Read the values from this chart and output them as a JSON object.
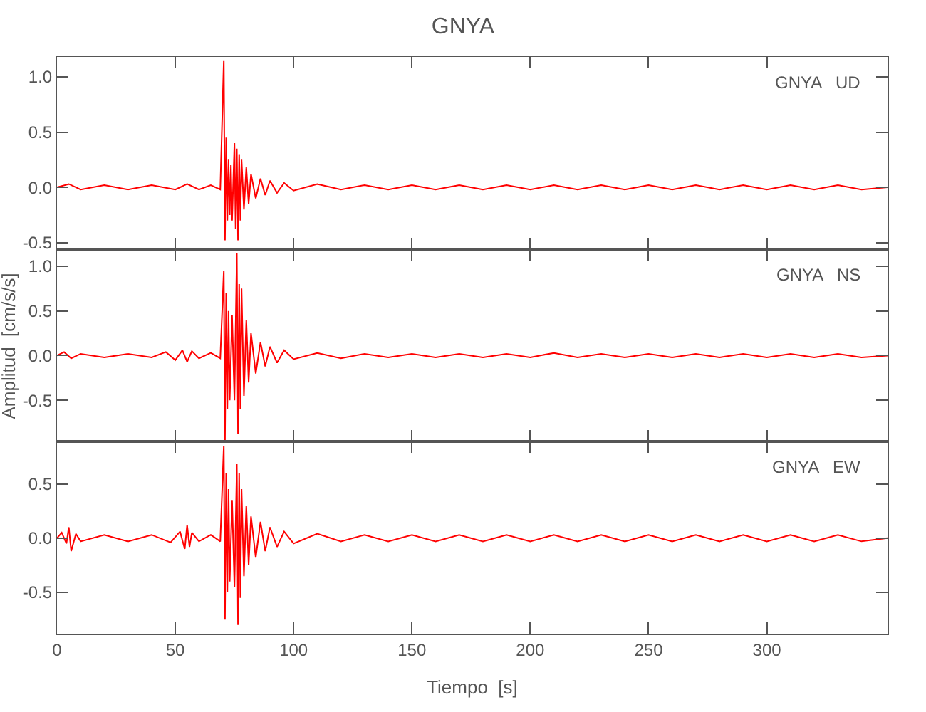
{
  "chart_data": [
    {
      "type": "line",
      "title": "GNYA",
      "annotations": [
        "GNYA   UD"
      ],
      "xlim": [
        0,
        351
      ],
      "xticks": [
        0,
        50,
        100,
        150,
        200,
        250,
        300
      ],
      "ylim": [
        -0.56,
        1.18
      ],
      "yticks": [
        {
          "value": -0.5,
          "label": "-0.5"
        },
        {
          "value": 0,
          "label": "0.0"
        },
        {
          "value": 0.5,
          "label": "0.5"
        },
        {
          "value": 1,
          "label": "1.0"
        }
      ],
      "tick_labels": "y",
      "series": [
        {
          "color": "#ff0000",
          "x": [
            0,
            5,
            10,
            20,
            30,
            40,
            50,
            55,
            60,
            65,
            69,
            70.5,
            71,
            71.5,
            72,
            72.5,
            73,
            73.5,
            74,
            75,
            75.5,
            76,
            76.5,
            77,
            77.5,
            78,
            79,
            80,
            81,
            82,
            84,
            86,
            88,
            90,
            93,
            96,
            100,
            110,
            120,
            130,
            140,
            150,
            160,
            170,
            180,
            190,
            200,
            210,
            220,
            230,
            240,
            250,
            260,
            270,
            280,
            290,
            300,
            310,
            320,
            330,
            340,
            351
          ],
          "values": [
            0,
            0.03,
            -0.02,
            0.02,
            -0.02,
            0.02,
            -0.02,
            0.03,
            -0.02,
            0.02,
            -0.02,
            1.15,
            -0.48,
            0.45,
            -0.3,
            0.25,
            -0.25,
            0.2,
            -0.3,
            0.4,
            -0.38,
            0.35,
            -0.48,
            0.3,
            -0.3,
            0.25,
            -0.2,
            0.18,
            -0.15,
            0.12,
            -0.1,
            0.08,
            -0.07,
            0.06,
            -0.05,
            0.04,
            -0.03,
            0.03,
            -0.02,
            0.02,
            -0.02,
            0.02,
            -0.02,
            0.02,
            -0.02,
            0.02,
            -0.02,
            0.02,
            -0.02,
            0.02,
            -0.02,
            0.02,
            -0.02,
            0.02,
            -0.02,
            0.02,
            -0.02,
            0.02,
            -0.02,
            0.02,
            -0.02,
            0
          ]
        }
      ]
    },
    {
      "type": "line",
      "ylabel": "Amplitud  [cm/s/s]",
      "annotations": [
        "GNYA   NS"
      ],
      "xlim": [
        0,
        351
      ],
      "xticks": [
        0,
        50,
        100,
        150,
        200,
        250,
        300
      ],
      "ylim": [
        -0.96,
        1.19
      ],
      "yticks": [
        {
          "value": -0.5,
          "label": "-0.5"
        },
        {
          "value": 0,
          "label": "0.0"
        },
        {
          "value": 0.5,
          "label": "0.5"
        },
        {
          "value": 1,
          "label": "1.0"
        }
      ],
      "tick_labels": "y",
      "series": [
        {
          "color": "#ff0000",
          "x": [
            0,
            3,
            6,
            10,
            20,
            30,
            40,
            46,
            50,
            53,
            55,
            57,
            60,
            65,
            69,
            70.5,
            71,
            71.5,
            72,
            72.5,
            73,
            74,
            75,
            76,
            76.5,
            77,
            77.5,
            78,
            79,
            80,
            81,
            82,
            84,
            86,
            88,
            90,
            93,
            96,
            100,
            110,
            120,
            130,
            140,
            150,
            160,
            170,
            180,
            190,
            200,
            210,
            220,
            230,
            240,
            250,
            260,
            270,
            280,
            290,
            300,
            310,
            320,
            330,
            340,
            351
          ],
          "values": [
            0,
            0.04,
            -0.03,
            0.02,
            -0.02,
            0.02,
            -0.02,
            0.04,
            -0.05,
            0.06,
            -0.07,
            0.05,
            -0.03,
            0.03,
            -0.03,
            0.95,
            -0.95,
            0.7,
            -0.6,
            0.5,
            -0.5,
            0.45,
            -0.5,
            1.15,
            -0.88,
            0.8,
            -0.6,
            0.75,
            -0.45,
            0.4,
            -0.3,
            0.25,
            -0.2,
            0.15,
            -0.12,
            0.1,
            -0.08,
            0.06,
            -0.04,
            0.03,
            -0.03,
            0.02,
            -0.02,
            0.02,
            -0.02,
            0.02,
            -0.02,
            0.02,
            -0.02,
            0.03,
            -0.02,
            0.02,
            -0.02,
            0.02,
            -0.02,
            0.02,
            -0.02,
            0.02,
            -0.02,
            0.02,
            -0.02,
            0.02,
            -0.02,
            0
          ]
        }
      ]
    },
    {
      "type": "line",
      "xlabel": "Tiempo  [s]",
      "annotations": [
        "GNYA   EW"
      ],
      "xlim": [
        0,
        351
      ],
      "xticks": [
        0,
        50,
        100,
        150,
        200,
        250,
        300
      ],
      "ylim": [
        -0.88,
        0.89
      ],
      "yticks": [
        {
          "value": -0.5,
          "label": "-0.5"
        },
        {
          "value": 0,
          "label": "0.0"
        },
        {
          "value": 0.5,
          "label": "0.5"
        }
      ],
      "series": [
        {
          "color": "#ff0000",
          "x": [
            0,
            2,
            4,
            5,
            6,
            8,
            10,
            20,
            30,
            40,
            48,
            52,
            54,
            55,
            56,
            57,
            60,
            65,
            69,
            70.5,
            71,
            71.5,
            72,
            72.5,
            73,
            74,
            75,
            76,
            76.5,
            77,
            77.5,
            78,
            79,
            80,
            81,
            82,
            84,
            86,
            88,
            90,
            93,
            96,
            100,
            110,
            120,
            130,
            140,
            150,
            160,
            170,
            180,
            190,
            200,
            210,
            220,
            230,
            240,
            250,
            260,
            270,
            280,
            290,
            300,
            310,
            320,
            330,
            340,
            351
          ],
          "values": [
            0,
            0.05,
            -0.05,
            0.1,
            -0.12,
            0.04,
            -0.03,
            0.03,
            -0.03,
            0.03,
            -0.04,
            0.06,
            -0.1,
            0.12,
            -0.08,
            0.05,
            -0.03,
            0.03,
            -0.03,
            0.85,
            -0.75,
            0.6,
            -0.5,
            0.45,
            -0.4,
            0.35,
            -0.45,
            0.68,
            -0.8,
            0.6,
            -0.55,
            0.45,
            -0.35,
            0.3,
            -0.25,
            0.2,
            -0.18,
            0.15,
            -0.12,
            0.1,
            -0.08,
            0.06,
            -0.05,
            0.04,
            -0.03,
            0.03,
            -0.03,
            0.03,
            -0.03,
            0.03,
            -0.03,
            0.03,
            -0.03,
            0.03,
            -0.03,
            0.03,
            -0.03,
            0.03,
            -0.03,
            0.03,
            -0.03,
            0.03,
            -0.03,
            0.03,
            -0.03,
            0.03,
            -0.03,
            0
          ]
        }
      ]
    }
  ]
}
